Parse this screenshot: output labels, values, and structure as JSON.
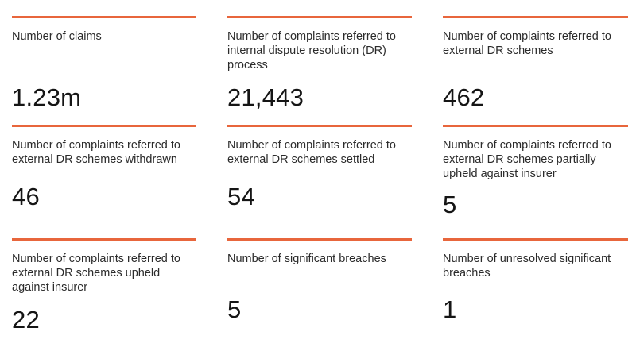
{
  "stats": [
    {
      "label": "Number of claims",
      "value": "1.23m"
    },
    {
      "label": "Number of complaints referred to internal dispute resolution (DR) process",
      "value": "21,443"
    },
    {
      "label": "Number of complaints referred to external DR schemes",
      "value": "462"
    },
    {
      "label": "Number of complaints referred to external DR schemes withdrawn",
      "value": "46"
    },
    {
      "label": "Number of complaints referred to external DR schemes settled",
      "value": "54"
    },
    {
      "label": "Number of complaints referred to external DR schemes partially upheld against insurer",
      "value": "5"
    },
    {
      "label": "Number of complaints referred to external DR schemes upheld against insurer",
      "value": "22"
    },
    {
      "label": "Number of significant breaches",
      "value": "5"
    },
    {
      "label": "Number of unresolved significant breaches",
      "value": "1"
    }
  ],
  "colors": {
    "accent_rule": "#e8663c",
    "text": "#1a1a1a"
  }
}
